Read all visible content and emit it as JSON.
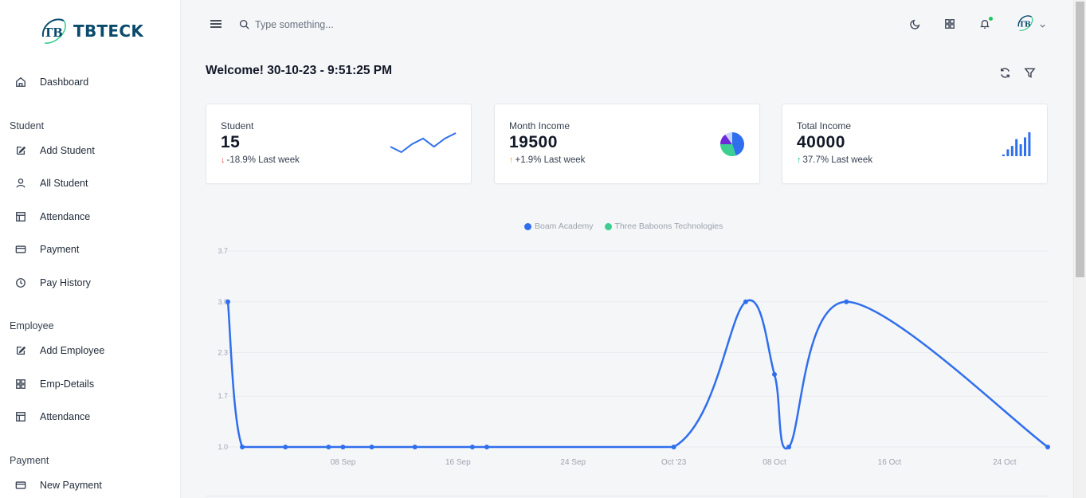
{
  "brand": {
    "name": "TBTECK",
    "logo_text": "TB"
  },
  "sidebar": {
    "dashboard": {
      "label": "Dashboard",
      "icon": "home-icon"
    },
    "sections": [
      {
        "title": "Student",
        "items": [
          {
            "label": "Add Student",
            "icon": "edit-icon"
          },
          {
            "label": "All Student",
            "icon": "user-icon"
          },
          {
            "label": "Attendance",
            "icon": "layout-icon"
          },
          {
            "label": "Payment",
            "icon": "credit-card-icon"
          },
          {
            "label": "Pay History",
            "icon": "clock-icon"
          }
        ]
      },
      {
        "title": "Employee",
        "items": [
          {
            "label": "Add Employee",
            "icon": "edit-icon"
          },
          {
            "label": "Emp-Details",
            "icon": "grid-icon"
          },
          {
            "label": "Attendance",
            "icon": "layout-icon"
          }
        ]
      },
      {
        "title": "Payment",
        "items": [
          {
            "label": "New Payment",
            "icon": "credit-card-icon"
          }
        ]
      }
    ]
  },
  "topbar": {
    "search_placeholder": "Type something...",
    "icons": [
      "menu-icon",
      "search-icon",
      "moon-icon",
      "apps-grid-icon",
      "bell-icon",
      "avatar",
      "chevron-down-icon"
    ],
    "notification_dot_color": "#22c55e"
  },
  "main": {
    "welcome": "Welcome! 30-10-23 - 9:51:25 PM",
    "actions": [
      "refresh-icon",
      "filter-icon"
    ],
    "cards": [
      {
        "label": "Student",
        "value": "15",
        "trend": "-18.9% Last week",
        "direction": "down",
        "trend_color": "#ef4444",
        "spark": "line"
      },
      {
        "label": "Month Income",
        "value": "19500",
        "trend": "+1.9% Last week",
        "direction": "up",
        "trend_color": "#f59e0b",
        "spark": "pie"
      },
      {
        "label": "Total Income",
        "value": "40000",
        "trend": "37.7% Last week",
        "direction": "up",
        "trend_color": "#10b981",
        "spark": "bar"
      }
    ]
  },
  "colors": {
    "primary": "#2f6fed",
    "secondary": "#3ccf91",
    "accent_dark": "#0b4a6b"
  },
  "chart_data": {
    "type": "line",
    "legend": [
      {
        "name": "Boam Academy",
        "color": "#2f6fed"
      },
      {
        "name": "Three Baboons Technologies",
        "color": "#3ccf91"
      }
    ],
    "y_ticks": [
      "1.0",
      "1.7",
      "2.3",
      "3.0",
      "3.7"
    ],
    "ylim": [
      1.0,
      3.7
    ],
    "x_ticks": [
      {
        "label": "08 Sep",
        "date": "2023-09-08"
      },
      {
        "label": "16 Sep",
        "date": "2023-09-16"
      },
      {
        "label": "24 Sep",
        "date": "2023-09-24"
      },
      {
        "label": "Oct '23",
        "date": "2023-10-01"
      },
      {
        "label": "08 Oct",
        "date": "2023-10-08"
      },
      {
        "label": "16 Oct",
        "date": "2023-10-16"
      },
      {
        "label": "24 Oct",
        "date": "2023-10-24"
      }
    ],
    "xlim": [
      "2023-08-31",
      "2023-10-27"
    ],
    "grid": true,
    "series": [
      {
        "name": "Boam Academy",
        "points": [
          [
            "2023-08-31",
            3.0
          ],
          [
            "2023-09-01",
            1.0
          ],
          [
            "2023-09-04",
            1.0
          ],
          [
            "2023-09-07",
            1.0
          ],
          [
            "2023-09-08",
            1.0
          ],
          [
            "2023-09-10",
            1.0
          ],
          [
            "2023-09-13",
            1.0
          ],
          [
            "2023-09-17",
            1.0
          ],
          [
            "2023-09-18",
            1.0
          ],
          [
            "2023-10-01",
            1.0
          ],
          [
            "2023-10-06",
            3.0
          ],
          [
            "2023-10-08",
            2.0
          ],
          [
            "2023-10-09",
            1.0
          ],
          [
            "2023-10-13",
            3.0
          ],
          [
            "2023-10-27",
            1.0
          ]
        ]
      }
    ]
  },
  "sparklines": {
    "student_line": [
      3,
      1,
      4,
      6,
      3,
      6,
      8
    ],
    "month_pie": [
      45,
      30,
      15,
      10
    ],
    "total_bars": [
      2,
      8,
      12,
      20,
      14,
      22,
      28
    ]
  }
}
